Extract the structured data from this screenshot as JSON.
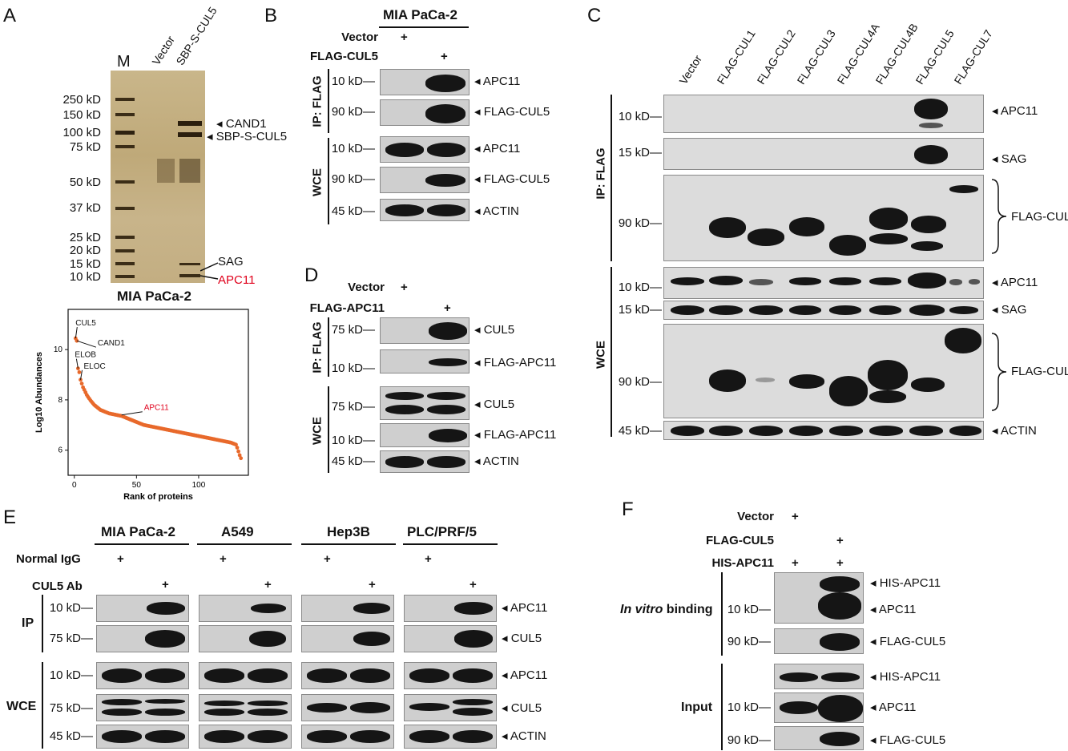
{
  "panelA": {
    "label": "A",
    "lanes": [
      "M",
      "Vector",
      "SBP-S-CUL5"
    ],
    "markers": [
      "250 kD",
      "150 kD",
      "100 kD",
      "75 kD",
      "50 kD",
      "37 kD",
      "25 kD",
      "20 kD",
      "15 kD",
      "10 kD"
    ],
    "bandLabels": [
      "CAND1",
      "SBP-S-CUL5",
      "SAG",
      "APC11"
    ],
    "accentColor": "#e0001b",
    "cellLine": "MIA PaCa-2"
  },
  "chart_data": {
    "type": "scatter",
    "title": "MIA PaCa-2",
    "xlabel": "Rank of proteins",
    "ylabel": "Log10 Abundances",
    "xticks": [
      "0",
      "50",
      "100"
    ],
    "yticks": [
      "6",
      "8",
      "10"
    ],
    "xlim": [
      -5,
      140
    ],
    "ylim": [
      5,
      11.6
    ],
    "color": "#e8692b",
    "annotations": [
      {
        "label": "CUL5",
        "x": 1,
        "y": 10.45
      },
      {
        "label": "CAND1",
        "x": 2,
        "y": 10.35
      },
      {
        "label": "ELOB",
        "x": 3,
        "y": 9.25
      },
      {
        "label": "ELOC",
        "x": 5,
        "y": 8.8
      },
      {
        "label": "APC11",
        "x": 38,
        "y": 7.4,
        "color": "#e0001b"
      }
    ],
    "x": [
      1,
      2,
      3,
      4,
      5,
      6,
      7,
      8,
      9,
      10,
      11,
      12,
      13,
      14,
      15,
      16,
      17,
      18,
      19,
      20,
      21,
      22,
      23,
      24,
      25,
      26,
      27,
      28,
      29,
      30,
      31,
      32,
      33,
      34,
      35,
      36,
      37,
      38,
      39,
      40,
      41,
      42,
      43,
      44,
      45,
      46,
      47,
      48,
      49,
      50,
      51,
      52,
      53,
      54,
      55,
      56,
      57,
      58,
      59,
      60,
      61,
      62,
      63,
      64,
      65,
      66,
      67,
      68,
      69,
      70,
      71,
      72,
      73,
      74,
      75,
      76,
      77,
      78,
      79,
      80,
      81,
      82,
      83,
      84,
      85,
      86,
      87,
      88,
      89,
      90,
      91,
      92,
      93,
      94,
      95,
      96,
      97,
      98,
      99,
      100,
      101,
      102,
      103,
      104,
      105,
      106,
      107,
      108,
      109,
      110,
      111,
      112,
      113,
      114,
      115,
      116,
      117,
      118,
      119,
      120,
      121,
      122,
      123,
      124,
      125,
      126,
      127,
      128,
      129,
      130,
      131,
      132,
      133,
      134
    ],
    "y": [
      10.45,
      10.35,
      9.25,
      9.1,
      8.8,
      8.65,
      8.5,
      8.4,
      8.3,
      8.2,
      8.12,
      8.05,
      7.98,
      7.92,
      7.86,
      7.8,
      7.76,
      7.72,
      7.68,
      7.64,
      7.6,
      7.58,
      7.56,
      7.54,
      7.52,
      7.5,
      7.48,
      7.46,
      7.45,
      7.44,
      7.43,
      7.42,
      7.41,
      7.4,
      7.39,
      7.38,
      7.37,
      7.36,
      7.34,
      7.32,
      7.3,
      7.28,
      7.26,
      7.24,
      7.22,
      7.2,
      7.18,
      7.16,
      7.14,
      7.12,
      7.1,
      7.08,
      7.06,
      7.04,
      7.02,
      7.0,
      6.99,
      6.98,
      6.97,
      6.96,
      6.95,
      6.94,
      6.93,
      6.92,
      6.91,
      6.9,
      6.89,
      6.88,
      6.87,
      6.86,
      6.85,
      6.84,
      6.83,
      6.82,
      6.81,
      6.8,
      6.79,
      6.78,
      6.77,
      6.76,
      6.75,
      6.74,
      6.73,
      6.72,
      6.71,
      6.7,
      6.69,
      6.68,
      6.67,
      6.66,
      6.65,
      6.64,
      6.63,
      6.62,
      6.61,
      6.6,
      6.59,
      6.58,
      6.57,
      6.56,
      6.55,
      6.54,
      6.53,
      6.52,
      6.51,
      6.5,
      6.49,
      6.48,
      6.47,
      6.46,
      6.45,
      6.44,
      6.43,
      6.42,
      6.41,
      6.4,
      6.39,
      6.38,
      6.37,
      6.36,
      6.35,
      6.34,
      6.33,
      6.32,
      6.31,
      6.3,
      6.28,
      6.26,
      6.24,
      6.22,
      6.1,
      5.95,
      5.8,
      5.68
    ]
  },
  "panelB": {
    "label": "B",
    "cellLine": "MIA PaCa-2",
    "conditions": [
      {
        "name": "Vector",
        "marks": [
          "+",
          ""
        ]
      },
      {
        "name": "FLAG-CUL5",
        "marks": [
          "",
          "+"
        ]
      }
    ],
    "groups": [
      "IP: FLAG",
      "WCE"
    ],
    "rows": [
      {
        "marker": "10 kD",
        "label": "APC11"
      },
      {
        "marker": "90 kD",
        "label": "FLAG-CUL5"
      },
      {
        "marker": "10 kD",
        "label": "APC11"
      },
      {
        "marker": "90 kD",
        "label": "FLAG-CUL5"
      },
      {
        "marker": "45 kD",
        "label": "ACTIN"
      }
    ]
  },
  "panelC": {
    "label": "C",
    "lanes": [
      "Vector",
      "FLAG-CUL1",
      "FLAG-CUL2",
      "FLAG-CUL3",
      "FLAG-CUL4A",
      "FLAG-CUL4B",
      "FLAG-CUL5",
      "FLAG-CUL7"
    ],
    "groups": [
      "IP: FLAG",
      "WCE"
    ],
    "rows": [
      {
        "marker": "10 kD",
        "label": "APC11"
      },
      {
        "marker": "15 kD",
        "label": "SAG"
      },
      {
        "marker": "90 kD",
        "label": "FLAG-CULs"
      },
      {
        "marker": "10 kD",
        "label": "APC11"
      },
      {
        "marker": "15 kD",
        "label": "SAG"
      },
      {
        "marker": "90 kD",
        "label": "FLAG-CULs"
      },
      {
        "marker": "45 kD",
        "label": "ACTIN"
      }
    ]
  },
  "panelD": {
    "label": "D",
    "conditions": [
      {
        "name": "Vector",
        "marks": [
          "+",
          ""
        ]
      },
      {
        "name": "FLAG-APC11",
        "marks": [
          "",
          "+"
        ]
      }
    ],
    "groups": [
      "IP: FLAG",
      "WCE"
    ],
    "rows": [
      {
        "marker": "75 kD",
        "label": "CUL5"
      },
      {
        "marker": "10 kD",
        "label": "FLAG-APC11"
      },
      {
        "marker": "75 kD",
        "label": "CUL5"
      },
      {
        "marker": "10 kD",
        "label": "FLAG-APC11"
      },
      {
        "marker": "45 kD",
        "label": "ACTIN"
      }
    ]
  },
  "panelE": {
    "label": "E",
    "cellLines": [
      "MIA PaCa-2",
      "A549",
      "Hep3B",
      "PLC/PRF/5"
    ],
    "conditions": [
      {
        "name": "Normal IgG",
        "marks": [
          "+",
          ""
        ]
      },
      {
        "name": "CUL5 Ab",
        "marks": [
          "",
          "+"
        ]
      }
    ],
    "groups": [
      "IP",
      "WCE"
    ],
    "rows": [
      {
        "marker": "10 kD",
        "label": "APC11"
      },
      {
        "marker": "75 kD",
        "label": "CUL5"
      },
      {
        "marker": "10 kD",
        "label": "APC11"
      },
      {
        "marker": "75 kD",
        "label": "CUL5"
      },
      {
        "marker": "45 kD",
        "label": "ACTIN"
      }
    ]
  },
  "panelF": {
    "label": "F",
    "conditions": [
      {
        "name": "Vector",
        "marks": [
          "+",
          ""
        ]
      },
      {
        "name": "FLAG-CUL5",
        "marks": [
          "",
          "+"
        ]
      },
      {
        "name": "HIS-APC11",
        "marks": [
          "+",
          "+"
        ]
      }
    ],
    "groups": [
      "In vitro binding",
      "Input"
    ],
    "groupPrefix": "In vitro",
    "groupSuffix": " binding",
    "rows": [
      {
        "marker": "",
        "label": "HIS-APC11"
      },
      {
        "marker": "10 kD",
        "label": "APC11"
      },
      {
        "marker": "90 kD",
        "label": "FLAG-CUL5"
      },
      {
        "marker": "",
        "label": "HIS-APC11"
      },
      {
        "marker": "10 kD",
        "label": "APC11"
      },
      {
        "marker": "90 kD",
        "label": "FLAG-CUL5"
      }
    ]
  }
}
